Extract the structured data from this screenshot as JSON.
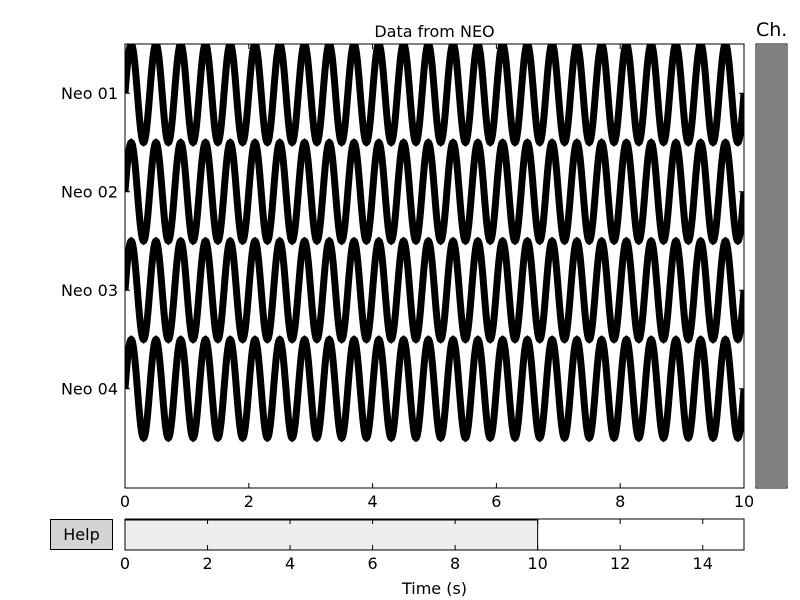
{
  "chart_data": [
    {
      "type": "line",
      "title": "Data from NEO",
      "xlim": [
        0,
        10
      ],
      "xticks": [
        "0",
        "2",
        "4",
        "6",
        "8",
        "10"
      ],
      "channels": [
        "Neo 01",
        "Neo 02",
        "Neo 03",
        "Neo 04"
      ],
      "signal": {
        "shape": "sine",
        "cycles_in_view": 25
      },
      "color": "#000000"
    },
    {
      "type": "bar",
      "name": "channel-scrollbar",
      "label": "Ch.",
      "fill_fraction": 1.0,
      "color": "#808080"
    },
    {
      "type": "area",
      "name": "time-navigator",
      "xlabel": "Time (s)",
      "xlim": [
        0,
        15
      ],
      "xticks": [
        "0",
        "2",
        "4",
        "6",
        "8",
        "10",
        "12",
        "14"
      ],
      "selection": [
        0,
        10
      ],
      "selection_color": "#eeeeee"
    }
  ],
  "controls": {
    "help_label": "Help"
  }
}
